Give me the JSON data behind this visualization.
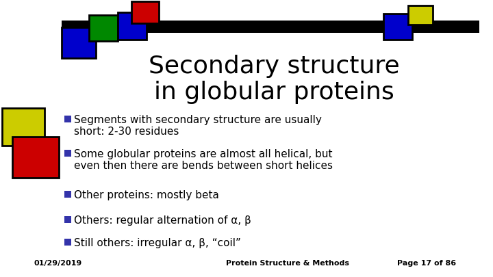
{
  "title_line1": "Secondary structure",
  "title_line2": "in globular proteins",
  "bullet_points": [
    "Segments with secondary structure are usually\nshort: 2-30 residues",
    "Some globular proteins are almost all helical, but\neven then there are bends between short helices",
    "Other proteins: mostly beta",
    "Others: regular alternation of α, β",
    "Still others: irregular α, β, “coil”"
  ],
  "footer_left": "01/29/2019",
  "footer_center": "Protein Structure & Methods",
  "footer_right": "Page 17 of 86",
  "bg_color": "#ffffff",
  "title_color": "#000000",
  "bullet_color": "#000000",
  "bullet_marker_color": "#3333aa",
  "footer_color": "#000000",
  "col_green": "#008800",
  "col_blue": "#0000cc",
  "col_red": "#cc0000",
  "col_yellow": "#cccc00"
}
